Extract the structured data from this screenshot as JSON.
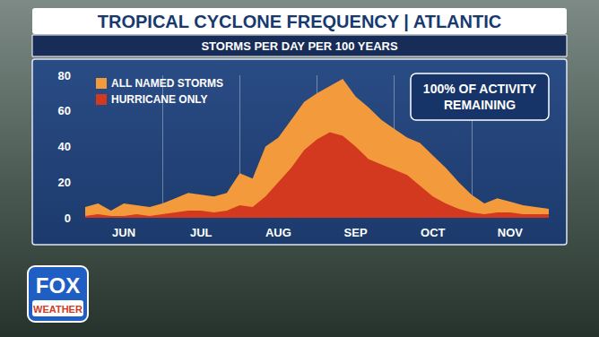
{
  "chart_data": {
    "type": "area",
    "title": "TROPICAL CYCLONE FREQUENCY | ATLANTIC",
    "subtitle": "STORMS PER DAY PER 100 YEARS",
    "annotation": "100% OF ACTIVITY\nREMAINING",
    "logo": [
      "FOX",
      "WEATHER"
    ],
    "categories": [
      null,
      null,
      null,
      "JUN",
      null,
      null,
      null,
      null,
      null,
      "JUL",
      null,
      null,
      null,
      null,
      null,
      "AUG",
      null,
      null,
      null,
      null,
      null,
      "SEP",
      null,
      null,
      null,
      null,
      null,
      "OCT",
      null,
      null,
      null,
      null,
      null,
      "NOV",
      null,
      null,
      null
    ],
    "series": [
      {
        "name": "ALL NAMED STORMS",
        "color": "#f39a3c",
        "values": [
          6,
          8,
          4,
          8,
          7,
          6,
          8,
          11,
          14,
          13,
          12,
          14,
          25,
          22,
          40,
          45,
          55,
          65,
          70,
          74,
          78,
          68,
          62,
          55,
          50,
          45,
          42,
          35,
          28,
          20,
          13,
          8,
          11,
          9,
          7,
          6,
          5
        ]
      },
      {
        "name": "HURRICANE ONLY",
        "color": "#d2391f",
        "values": [
          1,
          2,
          1,
          1,
          2,
          1,
          2,
          3,
          4,
          4,
          3,
          4,
          7,
          6,
          12,
          20,
          28,
          38,
          44,
          48,
          46,
          40,
          33,
          30,
          27,
          24,
          18,
          12,
          8,
          5,
          3,
          2,
          3,
          3,
          2,
          2,
          2
        ]
      }
    ],
    "ylim": [
      0,
      80
    ],
    "yticks": [
      0,
      20,
      40,
      60,
      80
    ],
    "stacked": false,
    "grid": true,
    "legend": "upper left"
  }
}
